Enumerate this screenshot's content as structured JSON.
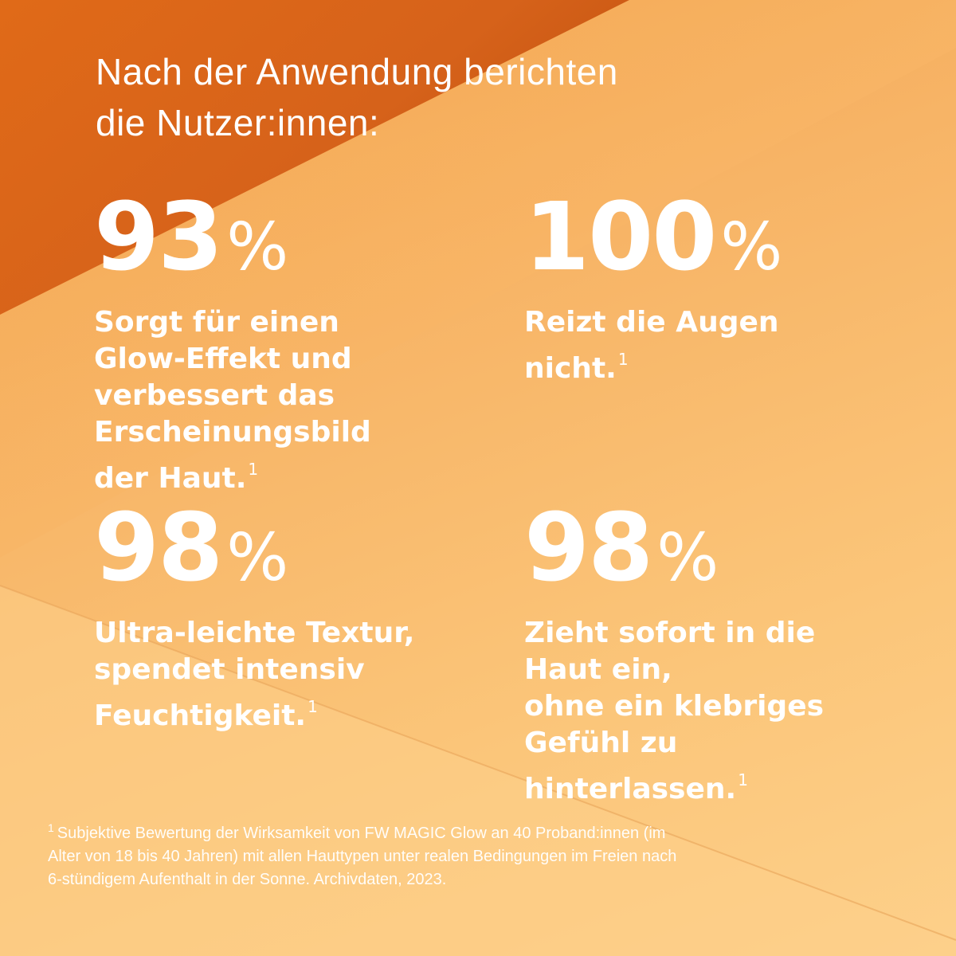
{
  "headline": {
    "line1": "Nach der Anwendung berichten",
    "line2": "die Nutzer:innen:"
  },
  "stats": [
    {
      "value": "93",
      "unit": "%",
      "desc_lines": [
        "Sorgt für einen",
        "Glow-Effekt und",
        "verbessert das",
        "Erscheinungsbild",
        "der Haut."
      ],
      "footnote_mark": "1"
    },
    {
      "value": "100",
      "unit": "%",
      "desc_lines": [
        "Reizt die Augen",
        "nicht."
      ],
      "footnote_mark": "1"
    },
    {
      "value": "98",
      "unit": "%",
      "desc_lines": [
        "Ultra-leichte Textur,",
        "spendet intensiv",
        "Feuchtigkeit."
      ],
      "footnote_mark": "1"
    },
    {
      "value": "98",
      "unit": "%",
      "desc_lines": [
        "Zieht sofort in die",
        "Haut ein,",
        "ohne ein klebriges",
        "Gefühl zu",
        "hinterlassen."
      ],
      "footnote_mark": "1"
    }
  ],
  "footnote": {
    "mark": "1",
    "line1": "Subjektive Bewertung der Wirksamkeit von FW MAGIC Glow an 40 Proband:innen (im",
    "line2": "Alter von 18 bis 40 Jahren) mit allen Hauttypen unter realen Bedingungen im Freien nach",
    "line3": "6-stündigem Aufenthalt in der Sonne. Archivdaten, 2023."
  },
  "colors": {
    "text": "#ffffff",
    "background_light": "#fbc579",
    "background_dark": "#c85510"
  }
}
